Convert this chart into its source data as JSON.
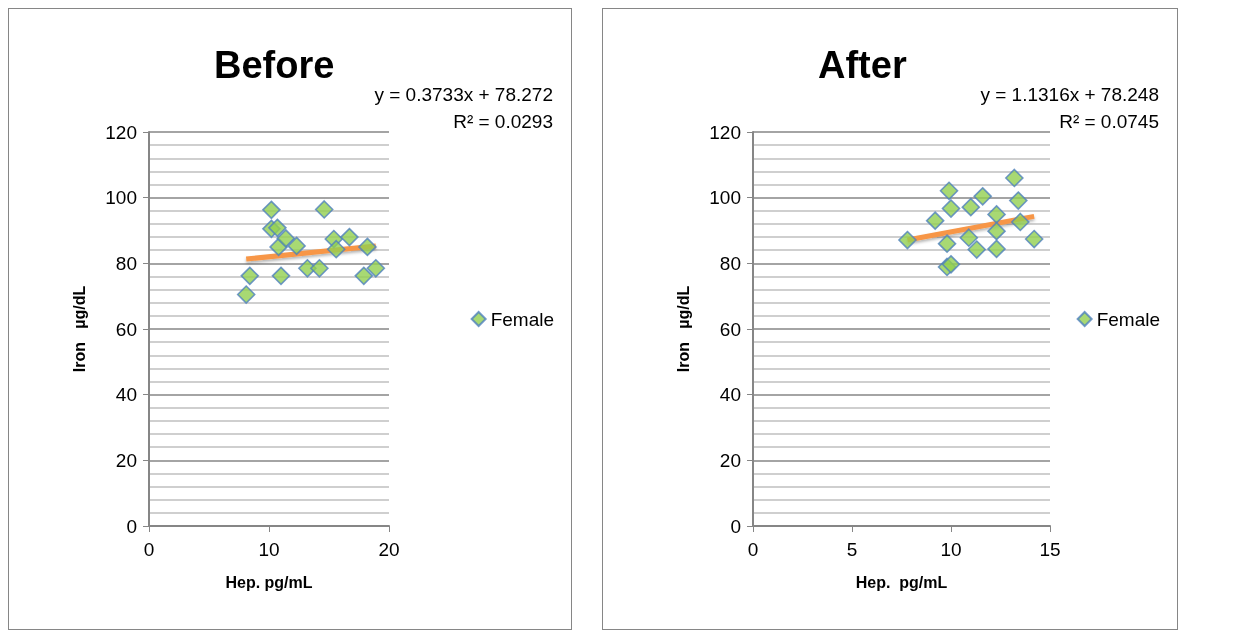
{
  "chart_data": [
    {
      "type": "scatter",
      "title": "Before",
      "xlabel": "Hep. pg/mL",
      "ylabel": "Iron   µg/dL",
      "annotations": [
        "y = 0.3733x + 78.272",
        "R² = 0.0293"
      ],
      "xlim": [
        0,
        20
      ],
      "xticks": [
        0,
        10,
        20
      ],
      "ylim": [
        0,
        120
      ],
      "yticks": [
        0,
        20,
        40,
        60,
        80,
        100,
        120
      ],
      "grid": "y",
      "legend": "right",
      "marker": "diamond",
      "series": [
        {
          "name": "Female",
          "color": "#92d050",
          "x": [
            8.1,
            8.4,
            10.2,
            10.2,
            10.7,
            10.8,
            11,
            11.4,
            12.3,
            13.2,
            14.2,
            14.6,
            15.4,
            15.6,
            16.7,
            17.9,
            18.2,
            18.9
          ],
          "values": [
            70.5,
            76.2,
            96.3,
            90.5,
            90.8,
            85,
            76.2,
            87.6,
            85.3,
            78.5,
            78.5,
            96.4,
            87.4,
            84.3,
            88,
            76.2,
            85,
            78.5
          ]
        },
        {
          "type": "line",
          "marker": "none",
          "color": "#f79646",
          "x": [
            8.1,
            18.9
          ],
          "values": [
            81.3,
            85.3
          ]
        }
      ]
    },
    {
      "type": "scatter",
      "title": "After",
      "xlabel": "Hep.  pg/mL",
      "ylabel": "Iron   µg/dL",
      "annotations": [
        "y = 1.1316x + 78.248",
        "R² = 0.0745"
      ],
      "xlim": [
        0,
        15
      ],
      "xticks": [
        0,
        5,
        10,
        15
      ],
      "ylim": [
        0,
        120
      ],
      "yticks": [
        0,
        20,
        40,
        60,
        80,
        100,
        120
      ],
      "grid": "y",
      "legend": "right",
      "marker": "diamond",
      "series": [
        {
          "name": "Female",
          "color": "#92d050",
          "x": [
            7.8,
            9.2,
            9.9,
            10,
            9.8,
            9.8,
            10,
            11,
            11.6,
            10.9,
            11.3,
            12.3,
            12.3,
            12.3,
            13.2,
            13.4,
            13.5,
            14.2
          ],
          "values": [
            87.1,
            93,
            102.1,
            96.7,
            86,
            78.9,
            79.7,
            97.1,
            100.4,
            87.8,
            84.2,
            94.9,
            89.8,
            84.4,
            106,
            99.1,
            92.6,
            87.4
          ]
        },
        {
          "type": "line",
          "marker": "none",
          "color": "#f79646",
          "x": [
            7.8,
            14.2
          ],
          "values": [
            87.1,
            94.3
          ]
        }
      ]
    }
  ]
}
